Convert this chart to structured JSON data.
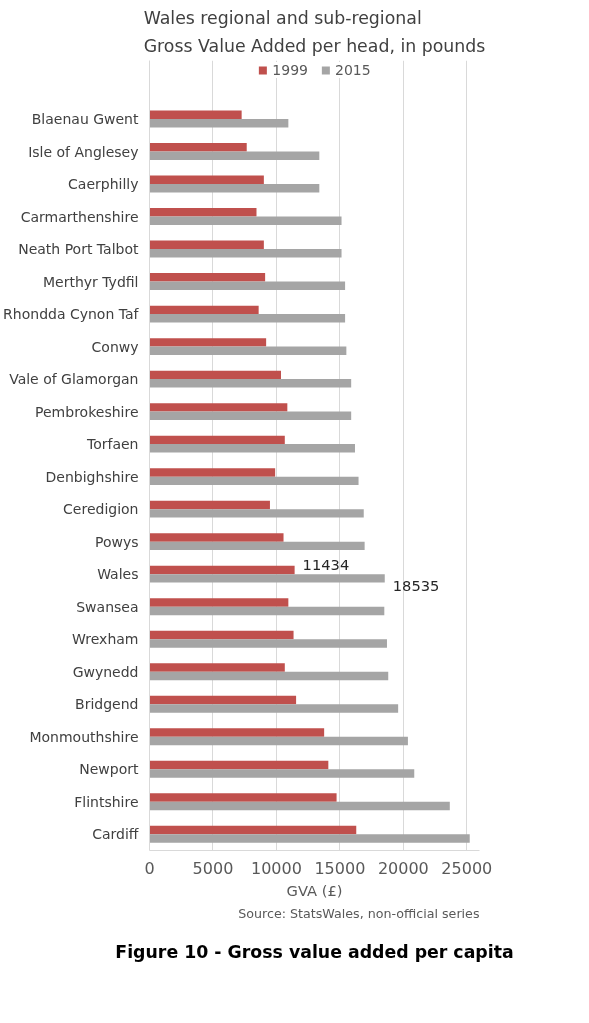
{
  "chart_data": {
    "type": "bar",
    "orientation": "horizontal",
    "title": "Wales regional and sub-regional\nGross Value Added per head, in pounds",
    "xlabel": "GVA (£)",
    "categories": [
      "Blaenau Gwent",
      "Isle of Anglesey",
      "Caerphilly",
      "Carmarthenshire",
      "Neath Port Talbot",
      "Merthyr Tydfil",
      "Rhondda Cynon Taf",
      "Conwy",
      "Vale of Glamorgan",
      "Pembrokeshire",
      "Torfaen",
      "Denbighshire",
      "Ceredigion",
      "Powys",
      "Wales",
      "Swansea",
      "Wrexham",
      "Gwynedd",
      "Bridgend",
      "Monmouthshire",
      "Newport",
      "Flintshire",
      "Cardiff"
    ],
    "series": [
      {
        "name": "1999",
        "color": "#c0504d",
        "values": [
          7260,
          7660,
          9010,
          8430,
          9010,
          9110,
          8600,
          9190,
          10360,
          10860,
          10660,
          9900,
          9490,
          10560,
          11434,
          10940,
          11350,
          10660,
          11550,
          13760,
          14090,
          14740,
          16290
        ],
        "value_labels": [
          null,
          null,
          null,
          null,
          null,
          null,
          null,
          null,
          null,
          null,
          null,
          null,
          null,
          null,
          "11434",
          null,
          null,
          null,
          null,
          null,
          null,
          null,
          null
        ]
      },
      {
        "name": "2015",
        "color": "#a5a5a5",
        "values": [
          10940,
          13380,
          13380,
          15130,
          15130,
          15410,
          15410,
          15510,
          15890,
          15890,
          16190,
          16470,
          16880,
          16950,
          18535,
          18500,
          18710,
          18810,
          19590,
          20360,
          20860,
          23660,
          25230
        ],
        "value_labels": [
          null,
          null,
          null,
          null,
          null,
          null,
          null,
          null,
          null,
          null,
          null,
          null,
          null,
          null,
          "18535",
          null,
          null,
          null,
          null,
          null,
          null,
          null,
          null
        ]
      }
    ],
    "xlim": [
      0,
      26000
    ],
    "xticks": [
      0,
      5000,
      10000,
      15000,
      20000,
      25000
    ],
    "grid": "x",
    "legend": "top",
    "annotations": [
      "Source: StatsWales, non-official series",
      "Figure 10 - Gross value added per capita"
    ]
  }
}
